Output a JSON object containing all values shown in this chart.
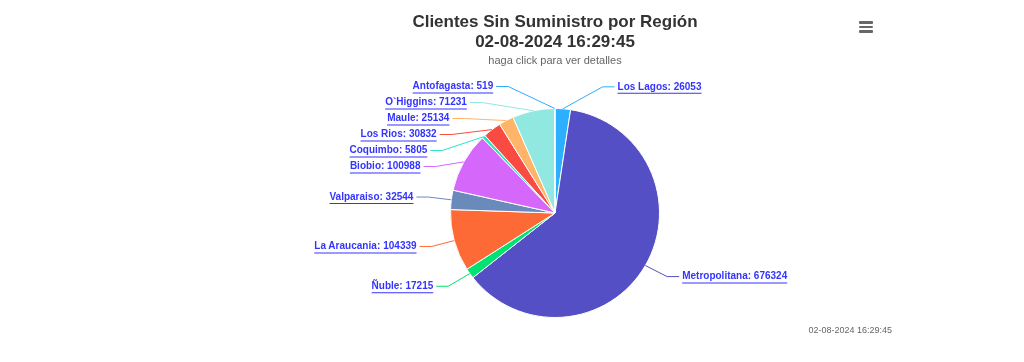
{
  "chart_data": {
    "type": "pie",
    "title": "Clientes Sin Suministro por Región\n02-08-2024 16:29:45",
    "subtitle": "haga click para ver detalles",
    "categories": [
      "Los Lagos",
      "Metropolitana",
      "Ñuble",
      "La Araucania",
      "Valparaiso",
      "Biobio",
      "Coquimbo",
      "Los Rios",
      "Maule",
      "O`Higgins",
      "Antofagasta"
    ],
    "values": [
      26053,
      676324,
      17215,
      104339,
      32544,
      100988,
      5805,
      30832,
      25134,
      71231,
      519
    ],
    "colors": [
      "#2caffe",
      "#544fc5",
      "#00e272",
      "#fe6a35",
      "#6b8abc",
      "#d568fb",
      "#2ee0ca",
      "#fa4b42",
      "#feb56a",
      "#91e8e1",
      "#2caffe"
    ],
    "value_labels": [
      ": 26053",
      ": 676324",
      ": 17215",
      ": 104339",
      ": 32544",
      ": 100988",
      ": 5805",
      ": 30832",
      ": 25134",
      ": 71231",
      ": 519"
    ],
    "legend": false,
    "annotations": [
      "02-08-2024 16:29:45"
    ]
  }
}
